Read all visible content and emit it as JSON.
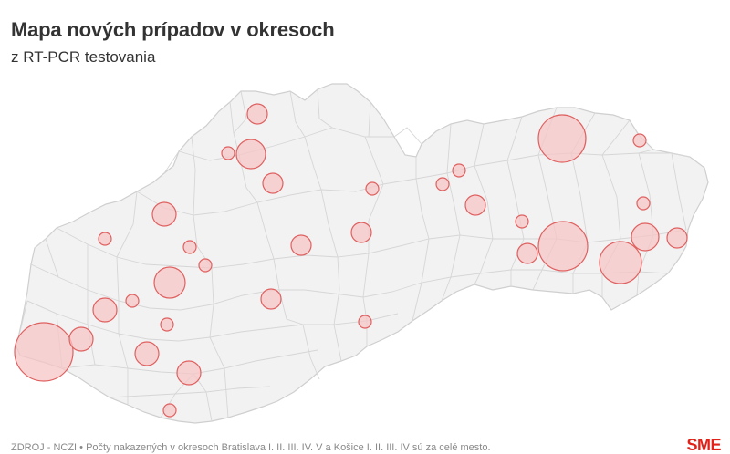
{
  "header": {
    "title": "Mapa nových prípadov v okresoch",
    "subtitle": "z RT-PCR testovania"
  },
  "footer": {
    "source": "ZDROJ - NCZI • Počty nakazených v okresoch Bratislava I. II. III. IV. V a Košice I. II. III. IV sú za celé mesto."
  },
  "brand": {
    "logo_text": "SME",
    "color": "#e32118"
  },
  "map": {
    "fill_color": "#f2f2f2",
    "border_color": "#d0d0d0",
    "bubble_fill": "#f5c6c6",
    "bubble_stroke": "#e06060"
  }
}
